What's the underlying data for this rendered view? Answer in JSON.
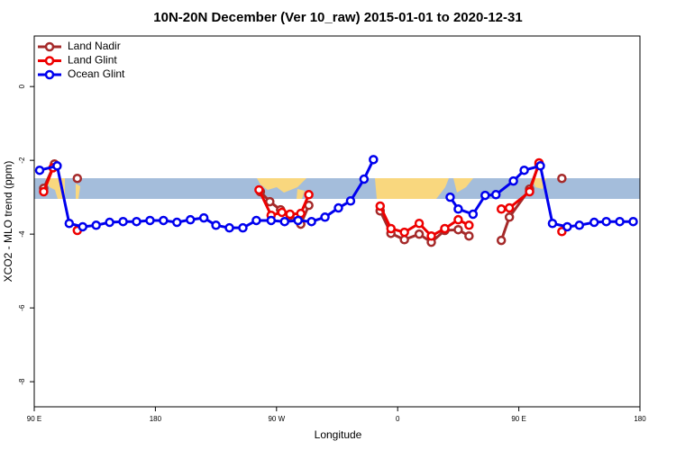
{
  "chart_data": {
    "type": "line",
    "title": "10N-20N December (Ver 10_raw)   2015-01-01 to 2020-12-31",
    "xlabel": "Longitude",
    "ylabel": "XCO2 - MLO trend (ppm)",
    "xlim": [
      90,
      540
    ],
    "ylim": [
      -8.68,
      1.37
    ],
    "xticks": [
      {
        "value": 90,
        "label": "90 E"
      },
      180,
      {
        "value": 270,
        "label": "90 W"
      },
      {
        "value": 360,
        "label": "0"
      },
      {
        "value": 450,
        "label": "90 E"
      },
      {
        "value": 540,
        "label": "180"
      }
    ],
    "yticks": [
      0,
      -2,
      -4,
      -6,
      -8
    ],
    "legend": "top-left",
    "series": [
      {
        "name": "Land Nadir",
        "color": "#a52a2a",
        "x": [
          97,
          105,
          null,
          122,
          null,
          258,
          265,
          273,
          280,
          288,
          294,
          null,
          347,
          355,
          365,
          376,
          385,
          395,
          405,
          413,
          null,
          437,
          443,
          458,
          465,
          null,
          482
        ],
        "values": [
          -2.76,
          -2.1,
          null,
          -2.49,
          null,
          -2.85,
          -3.12,
          -3.34,
          -3.49,
          -3.73,
          -3.22,
          null,
          -3.37,
          -3.98,
          -4.15,
          -4.0,
          -4.22,
          -3.9,
          -3.88,
          -4.05,
          null,
          -4.17,
          -3.54,
          -2.78,
          -2.1,
          null,
          -2.49
        ]
      },
      {
        "name": "Land Glint",
        "color": "#ee0000",
        "x": [
          97,
          104,
          null,
          122,
          null,
          257,
          266,
          274,
          280,
          288,
          294,
          null,
          347,
          355,
          365,
          376,
          385,
          395,
          405,
          413,
          null,
          437,
          443,
          458,
          465,
          null,
          482
        ],
        "values": [
          -2.85,
          -2.2,
          null,
          -3.9,
          null,
          -2.8,
          -3.49,
          -3.41,
          -3.46,
          -3.44,
          -2.93,
          null,
          -3.24,
          -3.85,
          -3.95,
          -3.71,
          -4.05,
          -3.85,
          -3.61,
          -3.76,
          null,
          -3.32,
          -3.29,
          -2.85,
          -2.07,
          null,
          -3.93
        ]
      },
      {
        "name": "Ocean Glint",
        "color": "#0000ee",
        "x": [
          94,
          107,
          116,
          126,
          136,
          146,
          156,
          166,
          176,
          186,
          196,
          206,
          216,
          225,
          235,
          245,
          255,
          266,
          276,
          286,
          296,
          306,
          316,
          325,
          335,
          342,
          null,
          399,
          405,
          416,
          425,
          433,
          446,
          454,
          466,
          475,
          486,
          495,
          506,
          515,
          525,
          535
        ],
        "values": [
          -2.27,
          -2.15,
          -3.71,
          -3.8,
          -3.76,
          -3.68,
          -3.66,
          -3.66,
          -3.63,
          -3.63,
          -3.68,
          -3.61,
          -3.56,
          -3.76,
          -3.83,
          -3.83,
          -3.63,
          -3.63,
          -3.66,
          -3.63,
          -3.66,
          -3.54,
          -3.29,
          -3.1,
          -2.51,
          -1.98,
          null,
          -3.0,
          -3.32,
          -3.46,
          -2.95,
          -2.93,
          -2.56,
          -2.27,
          -2.15,
          -3.71,
          -3.8,
          -3.76,
          -3.68,
          -3.66,
          -3.66,
          -3.66
        ]
      }
    ]
  }
}
